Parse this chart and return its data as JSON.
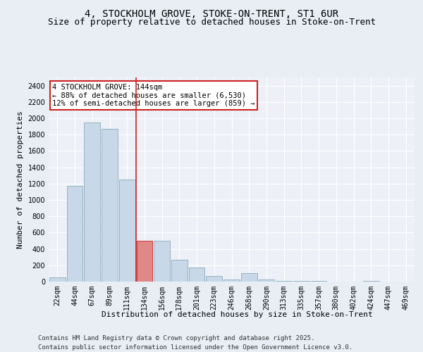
{
  "title_line1": "4, STOCKHOLM GROVE, STOKE-ON-TRENT, ST1 6UR",
  "title_line2": "Size of property relative to detached houses in Stoke-on-Trent",
  "xlabel": "Distribution of detached houses by size in Stoke-on-Trent",
  "ylabel": "Number of detached properties",
  "categories": [
    "22sqm",
    "44sqm",
    "67sqm",
    "89sqm",
    "111sqm",
    "134sqm",
    "156sqm",
    "178sqm",
    "201sqm",
    "223sqm",
    "246sqm",
    "268sqm",
    "290sqm",
    "313sqm",
    "335sqm",
    "357sqm",
    "380sqm",
    "402sqm",
    "424sqm",
    "447sqm",
    "469sqm"
  ],
  "values": [
    50,
    1175,
    1950,
    1875,
    1250,
    500,
    500,
    265,
    170,
    65,
    30,
    100,
    25,
    10,
    5,
    5,
    0,
    0,
    5,
    0,
    0
  ],
  "bar_color": "#c8d8e8",
  "bar_edge_color": "#8aaabb",
  "highlight_bar_index": 5,
  "highlight_bar_color": "#e08888",
  "highlight_bar_edge_color": "#cc2222",
  "vline_color": "#cc2222",
  "annotation_text": "4 STOCKHOLM GROVE: 144sqm\n← 88% of detached houses are smaller (6,530)\n12% of semi-detached houses are larger (859) →",
  "annotation_box_color": "#ffffff",
  "annotation_box_edge": "#cc2222",
  "ylim": [
    0,
    2500
  ],
  "yticks": [
    0,
    200,
    400,
    600,
    800,
    1000,
    1200,
    1400,
    1600,
    1800,
    2000,
    2200,
    2400
  ],
  "footer_line1": "Contains HM Land Registry data © Crown copyright and database right 2025.",
  "footer_line2": "Contains public sector information licensed under the Open Government Licence v3.0.",
  "bg_color": "#e8eef4",
  "plot_bg_color": "#edf1f7",
  "grid_color": "#ffffff",
  "title_fontsize": 10,
  "subtitle_fontsize": 9,
  "label_fontsize": 8,
  "tick_fontsize": 7,
  "annot_fontsize": 7.5,
  "footer_fontsize": 6.5
}
